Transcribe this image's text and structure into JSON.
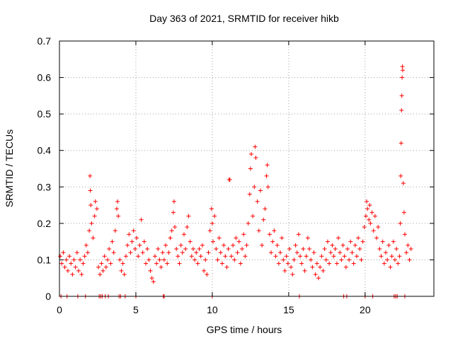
{
  "chart_data": {
    "type": "scatter",
    "title": "Day 363 of 2021, SRMTID for receiver hikb",
    "xlabel": "GPS time / hours",
    "ylabel": "SRMTID / TECUs",
    "xlim": [
      0,
      24.5
    ],
    "ylim": [
      0,
      0.7
    ],
    "x_ticks": [
      0,
      5,
      10,
      15,
      20
    ],
    "x_tick_labels": [
      "0",
      "5",
      "10",
      "15",
      "20"
    ],
    "y_ticks": [
      0,
      0.1,
      0.2,
      0.3,
      0.4,
      0.5,
      0.6,
      0.7
    ],
    "y_tick_labels": [
      "0",
      "0.1",
      "0.2",
      "0.3",
      "0.4",
      "0.5",
      "0.6",
      "0.7"
    ],
    "grid": true,
    "marker": "+",
    "marker_color": "#ff0000",
    "series": [
      {
        "name": "SRMTID",
        "points": [
          [
            0.05,
            0.11
          ],
          [
            0.15,
            0.09
          ],
          [
            0.25,
            0.12
          ],
          [
            0.35,
            0.08
          ],
          [
            0.45,
            0.1
          ],
          [
            0.55,
            0.07
          ],
          [
            0.65,
            0.11
          ],
          [
            0.75,
            0.09
          ],
          [
            0.85,
            0.06
          ],
          [
            0.95,
            0.1
          ],
          [
            1.05,
            0.08
          ],
          [
            1.15,
            0.12
          ],
          [
            1.25,
            0.07
          ],
          [
            1.35,
            0.1
          ],
          [
            1.45,
            0.06
          ],
          [
            1.55,
            0.09
          ],
          [
            1.65,
            0.11
          ],
          [
            1.75,
            0.14
          ],
          [
            1.85,
            0.12
          ],
          [
            1.95,
            0.18
          ],
          [
            2.0,
            0.33
          ],
          [
            2.02,
            0.29
          ],
          [
            2.05,
            0.25
          ],
          [
            2.1,
            0.2
          ],
          [
            2.2,
            0.16
          ],
          [
            2.3,
            0.22
          ],
          [
            2.35,
            0.26
          ],
          [
            2.45,
            0.24
          ],
          [
            2.55,
            0.08
          ],
          [
            2.65,
            0.06
          ],
          [
            2.75,
            0.09
          ],
          [
            2.85,
            0.07
          ],
          [
            2.95,
            0.11
          ],
          [
            3.05,
            0.08
          ],
          [
            3.15,
            0.1
          ],
          [
            3.25,
            0.13
          ],
          [
            3.35,
            0.09
          ],
          [
            3.45,
            0.15
          ],
          [
            3.55,
            0.12
          ],
          [
            3.65,
            0.18
          ],
          [
            3.75,
            0.24
          ],
          [
            3.8,
            0.26
          ],
          [
            3.85,
            0.22
          ],
          [
            3.95,
            0.1
          ],
          [
            4.05,
            0.07
          ],
          [
            4.15,
            0.09
          ],
          [
            4.25,
            0.06
          ],
          [
            4.35,
            0.11
          ],
          [
            4.45,
            0.14
          ],
          [
            4.55,
            0.17
          ],
          [
            4.65,
            0.12
          ],
          [
            4.75,
            0.15
          ],
          [
            4.85,
            0.18
          ],
          [
            4.95,
            0.13
          ],
          [
            5.05,
            0.16
          ],
          [
            5.15,
            0.11
          ],
          [
            5.25,
            0.14
          ],
          [
            5.35,
            0.21
          ],
          [
            5.45,
            0.12
          ],
          [
            5.55,
            0.15
          ],
          [
            5.65,
            0.09
          ],
          [
            5.75,
            0.13
          ],
          [
            5.85,
            0.1
          ],
          [
            5.95,
            0.07
          ],
          [
            6.05,
            0.05
          ],
          [
            6.15,
            0.04
          ],
          [
            6.25,
            0.11
          ],
          [
            6.35,
            0.09
          ],
          [
            6.45,
            0.13
          ],
          [
            6.55,
            0.1
          ],
          [
            6.65,
            0.08
          ],
          [
            6.75,
            0.12
          ],
          [
            6.85,
            0.1
          ],
          [
            6.95,
            0.14
          ],
          [
            7.05,
            0.09
          ],
          [
            7.15,
            0.12
          ],
          [
            7.25,
            0.16
          ],
          [
            7.35,
            0.18
          ],
          [
            7.45,
            0.23
          ],
          [
            7.5,
            0.26
          ],
          [
            7.55,
            0.19
          ],
          [
            7.65,
            0.13
          ],
          [
            7.75,
            0.11
          ],
          [
            7.85,
            0.09
          ],
          [
            7.95,
            0.14
          ],
          [
            8.05,
            0.12
          ],
          [
            8.15,
            0.17
          ],
          [
            8.25,
            0.13
          ],
          [
            8.35,
            0.19
          ],
          [
            8.45,
            0.22
          ],
          [
            8.55,
            0.15
          ],
          [
            8.65,
            0.11
          ],
          [
            8.75,
            0.13
          ],
          [
            8.85,
            0.1
          ],
          [
            8.95,
            0.12
          ],
          [
            9.05,
            0.09
          ],
          [
            9.15,
            0.13
          ],
          [
            9.25,
            0.11
          ],
          [
            9.35,
            0.14
          ],
          [
            9.45,
            0.07
          ],
          [
            9.55,
            0.1
          ],
          [
            9.65,
            0.06
          ],
          [
            9.75,
            0.12
          ],
          [
            9.85,
            0.18
          ],
          [
            9.95,
            0.24
          ],
          [
            10.0,
            0.2
          ],
          [
            10.05,
            0.15
          ],
          [
            10.15,
            0.22
          ],
          [
            10.25,
            0.13
          ],
          [
            10.35,
            0.1
          ],
          [
            10.45,
            0.16
          ],
          [
            10.55,
            0.12
          ],
          [
            10.65,
            0.09
          ],
          [
            10.75,
            0.14
          ],
          [
            10.85,
            0.11
          ],
          [
            10.95,
            0.08
          ],
          [
            11.05,
            0.13
          ],
          [
            11.1,
            0.32
          ],
          [
            11.15,
            0.32
          ],
          [
            11.25,
            0.11
          ],
          [
            11.35,
            0.14
          ],
          [
            11.45,
            0.1
          ],
          [
            11.55,
            0.16
          ],
          [
            11.65,
            0.12
          ],
          [
            11.75,
            0.15
          ],
          [
            11.85,
            0.09
          ],
          [
            11.95,
            0.13
          ],
          [
            12.05,
            0.17
          ],
          [
            12.15,
            0.11
          ],
          [
            12.25,
            0.14
          ],
          [
            12.35,
            0.2
          ],
          [
            12.45,
            0.28
          ],
          [
            12.5,
            0.35
          ],
          [
            12.55,
            0.39
          ],
          [
            12.65,
            0.22
          ],
          [
            12.75,
            0.3
          ],
          [
            12.8,
            0.41
          ],
          [
            12.85,
            0.38
          ],
          [
            12.95,
            0.26
          ],
          [
            13.05,
            0.18
          ],
          [
            13.15,
            0.29
          ],
          [
            13.25,
            0.14
          ],
          [
            13.35,
            0.21
          ],
          [
            13.45,
            0.24
          ],
          [
            13.55,
            0.33
          ],
          [
            13.6,
            0.36
          ],
          [
            13.65,
            0.3
          ],
          [
            13.75,
            0.17
          ],
          [
            13.85,
            0.12
          ],
          [
            13.95,
            0.15
          ],
          [
            14.05,
            0.18
          ],
          [
            14.15,
            0.11
          ],
          [
            14.25,
            0.14
          ],
          [
            14.35,
            0.09
          ],
          [
            14.45,
            0.12
          ],
          [
            14.55,
            0.16
          ],
          [
            14.65,
            0.1
          ],
          [
            14.75,
            0.07
          ],
          [
            14.85,
            0.11
          ],
          [
            14.95,
            0.09
          ],
          [
            15.05,
            0.13
          ],
          [
            15.15,
            0.08
          ],
          [
            15.25,
            0.06
          ],
          [
            15.35,
            0.1
          ],
          [
            15.45,
            0.14
          ],
          [
            15.55,
            0.12
          ],
          [
            15.65,
            0.17
          ],
          [
            15.75,
            0.11
          ],
          [
            15.85,
            0.09
          ],
          [
            15.95,
            0.13
          ],
          [
            16.05,
            0.07
          ],
          [
            16.15,
            0.11
          ],
          [
            16.25,
            0.16
          ],
          [
            16.35,
            0.13
          ],
          [
            16.45,
            0.1
          ],
          [
            16.55,
            0.08
          ],
          [
            16.65,
            0.12
          ],
          [
            16.75,
            0.06
          ],
          [
            16.85,
            0.09
          ],
          [
            16.95,
            0.05
          ],
          [
            17.05,
            0.08
          ],
          [
            17.15,
            0.11
          ],
          [
            17.25,
            0.07
          ],
          [
            17.35,
            0.13
          ],
          [
            17.45,
            0.1
          ],
          [
            17.55,
            0.15
          ],
          [
            17.65,
            0.09
          ],
          [
            17.75,
            0.12
          ],
          [
            17.85,
            0.14
          ],
          [
            17.95,
            0.11
          ],
          [
            18.05,
            0.13
          ],
          [
            18.15,
            0.09
          ],
          [
            18.25,
            0.16
          ],
          [
            18.35,
            0.12
          ],
          [
            18.45,
            0.1
          ],
          [
            18.55,
            0.14
          ],
          [
            18.65,
            0.11
          ],
          [
            18.75,
            0.08
          ],
          [
            18.85,
            0.13
          ],
          [
            18.95,
            0.1
          ],
          [
            19.05,
            0.15
          ],
          [
            19.15,
            0.12
          ],
          [
            19.25,
            0.09
          ],
          [
            19.35,
            0.14
          ],
          [
            19.45,
            0.11
          ],
          [
            19.55,
            0.16
          ],
          [
            19.65,
            0.13
          ],
          [
            19.75,
            0.1
          ],
          [
            19.85,
            0.15
          ],
          [
            19.95,
            0.19
          ],
          [
            20.05,
            0.22
          ],
          [
            20.1,
            0.26
          ],
          [
            20.15,
            0.24
          ],
          [
            20.25,
            0.21
          ],
          [
            20.3,
            0.25
          ],
          [
            20.35,
            0.2
          ],
          [
            20.45,
            0.23
          ],
          [
            20.55,
            0.18
          ],
          [
            20.65,
            0.22
          ],
          [
            20.75,
            0.16
          ],
          [
            20.85,
            0.19
          ],
          [
            20.95,
            0.13
          ],
          [
            21.05,
            0.11
          ],
          [
            21.15,
            0.15
          ],
          [
            21.25,
            0.09
          ],
          [
            21.35,
            0.12
          ],
          [
            21.45,
            0.1
          ],
          [
            21.55,
            0.14
          ],
          [
            21.65,
            0.08
          ],
          [
            21.75,
            0.11
          ],
          [
            21.85,
            0.15
          ],
          [
            21.95,
            0.1
          ],
          [
            22.05,
            0.13
          ],
          [
            22.15,
            0.09
          ],
          [
            22.25,
            0.11
          ],
          [
            22.3,
            0.2
          ],
          [
            22.33,
            0.33
          ],
          [
            22.36,
            0.42
          ],
          [
            22.38,
            0.51
          ],
          [
            22.4,
            0.55
          ],
          [
            22.42,
            0.6
          ],
          [
            22.44,
            0.63
          ],
          [
            22.46,
            0.62
          ],
          [
            22.5,
            0.31
          ],
          [
            22.55,
            0.23
          ],
          [
            22.6,
            0.17
          ],
          [
            22.7,
            0.12
          ],
          [
            22.8,
            0.14
          ],
          [
            22.9,
            0.1
          ],
          [
            23.0,
            0.13
          ]
        ],
        "zero_points_x": [
          0.1,
          0.5,
          1.2,
          1.7,
          2.6,
          2.7,
          2.8,
          3.0,
          3.2,
          3.9,
          4.0,
          4.3,
          5.0,
          6.8,
          6.85,
          10.0,
          15.7,
          18.6,
          18.8,
          20.0,
          20.5,
          21.9,
          22.0,
          22.1,
          22.6
        ]
      }
    ]
  }
}
